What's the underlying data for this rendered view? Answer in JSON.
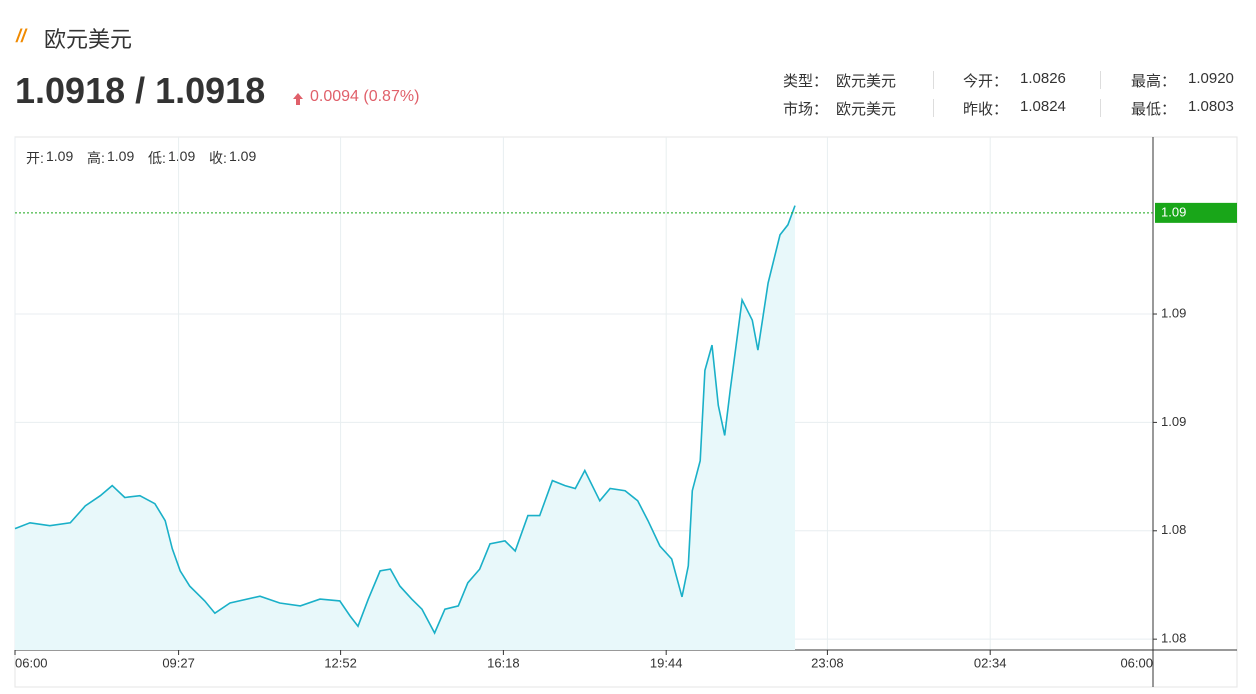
{
  "header": {
    "title": "欧元美元",
    "price": "1.0918 / 1.0918",
    "change": "0.0094 (0.87%)"
  },
  "info": [
    [
      {
        "label": "类型：",
        "value": "欧元美元"
      },
      {
        "label": "今开：",
        "value": "1.0826"
      },
      {
        "label": "最高：",
        "value": "1.0920"
      }
    ],
    [
      {
        "label": "市场：",
        "value": "欧元美元"
      },
      {
        "label": "昨收：",
        "value": "1.0824"
      },
      {
        "label": "最低：",
        "value": "1.0803"
      }
    ]
  ],
  "ohlc": [
    {
      "label": "开:",
      "value": "1.09"
    },
    {
      "label": "高:",
      "value": "1.09"
    },
    {
      "label": "低:",
      "value": "1.09"
    },
    {
      "label": "收:",
      "value": "1.09"
    }
  ],
  "chart_data": {
    "type": "area",
    "color": "#1ab0c8",
    "fill": "#e8f8fa",
    "x": [
      0,
      19,
      44,
      70,
      89,
      108,
      123,
      139,
      158,
      177,
      190,
      199,
      209,
      221,
      240,
      253,
      272,
      310,
      335,
      361,
      386,
      411,
      424,
      434,
      447,
      462,
      475,
      487,
      502,
      515,
      531,
      544,
      561,
      573,
      588,
      601,
      620,
      633,
      649,
      664,
      680,
      696,
      709,
      721,
      740,
      753,
      772,
      788,
      801,
      816,
      831,
      844,
      852,
      857,
      867,
      873,
      882,
      890,
      898,
      905,
      920,
      933,
      940,
      953,
      968,
      978,
      987
    ],
    "values": [
      1.08306,
      1.08322,
      1.08314,
      1.08322,
      1.08369,
      1.08397,
      1.08425,
      1.08392,
      1.08397,
      1.08375,
      1.08328,
      1.0825,
      1.08189,
      1.08147,
      1.08106,
      1.08072,
      1.081,
      1.08119,
      1.081,
      1.08092,
      1.08111,
      1.08106,
      1.08064,
      1.08036,
      1.08111,
      1.08189,
      1.08194,
      1.08147,
      1.08111,
      1.08083,
      1.08017,
      1.08083,
      1.08092,
      1.08156,
      1.08194,
      1.08264,
      1.08272,
      1.08244,
      1.08342,
      1.08342,
      1.08439,
      1.08425,
      1.08417,
      1.08467,
      1.08383,
      1.08417,
      1.08411,
      1.08383,
      1.08328,
      1.08258,
      1.08222,
      1.08117,
      1.08203,
      1.08411,
      1.08494,
      1.08744,
      1.08814,
      1.08647,
      1.08564,
      1.08689,
      1.08939,
      1.08883,
      1.088,
      1.08986,
      1.09119,
      1.09147,
      1.092
    ],
    "xlim": [
      0,
      1440
    ],
    "xticks": [
      {
        "value": 0,
        "label": "06:00"
      },
      {
        "value": 207,
        "label": "09:27"
      },
      {
        "value": 412,
        "label": "12:52"
      },
      {
        "value": 618,
        "label": "16:18"
      },
      {
        "value": 824,
        "label": "19:44"
      },
      {
        "value": 1028,
        "label": "23:08"
      },
      {
        "value": 1234,
        "label": "02:34"
      },
      {
        "value": 1440,
        "label": "06:00"
      }
    ],
    "ylim": [
      1.0797,
      1.0939
    ],
    "yticks": [
      {
        "value": 1.08,
        "label": "1.08"
      },
      {
        "value": 1.083,
        "label": "1.08"
      },
      {
        "value": 1.086,
        "label": "1.09"
      },
      {
        "value": 1.089,
        "label": "1.09"
      }
    ],
    "current": {
      "value": 1.0918,
      "label": "1.09",
      "color": "#19a619"
    },
    "grid": true
  }
}
